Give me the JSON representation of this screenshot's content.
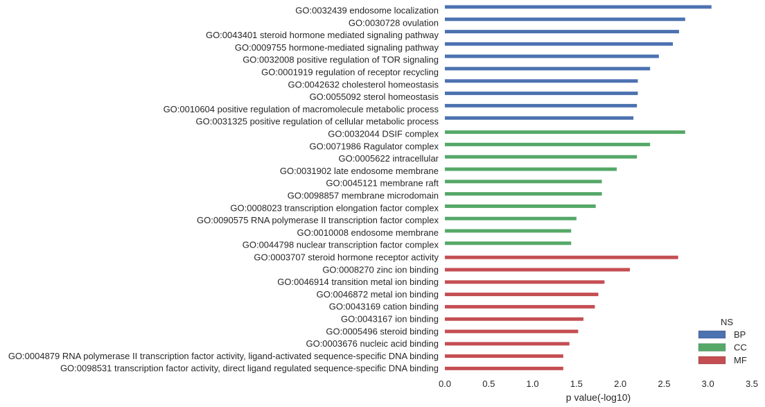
{
  "chart_data": {
    "type": "bar",
    "orientation": "horizontal",
    "xlabel": "p value(-log10)",
    "xlim": [
      0,
      3.5
    ],
    "xticks": [
      "0.0",
      "0.5",
      "1.0",
      "1.5",
      "2.0",
      "2.5",
      "3.0",
      "3.5"
    ],
    "grid": false,
    "legend": {
      "title": "NS",
      "placement": "bottom-right",
      "entries": [
        {
          "name": "BP",
          "color": "#4c72b0"
        },
        {
          "name": "CC",
          "color": "#55a868"
        },
        {
          "name": "MF",
          "color": "#c44e52"
        }
      ]
    },
    "categories": [
      {
        "label": "GO:0032439 endosome localization",
        "ns": "BP",
        "value": 3.04
      },
      {
        "label": "GO:0030728 ovulation",
        "ns": "BP",
        "value": 2.74
      },
      {
        "label": "GO:0043401 steroid hormone mediated signaling pathway",
        "ns": "BP",
        "value": 2.67
      },
      {
        "label": "GO:0009755 hormone-mediated signaling pathway",
        "ns": "BP",
        "value": 2.6
      },
      {
        "label": "GO:0032008 positive regulation of TOR signaling",
        "ns": "BP",
        "value": 2.44
      },
      {
        "label": "GO:0001919 regulation of receptor recycling",
        "ns": "BP",
        "value": 2.34
      },
      {
        "label": "GO:0042632 cholesterol homeostasis",
        "ns": "BP",
        "value": 2.2
      },
      {
        "label": "GO:0055092 sterol homeostasis",
        "ns": "BP",
        "value": 2.2
      },
      {
        "label": "GO:0010604 positive regulation of macromolecule metabolic process",
        "ns": "BP",
        "value": 2.19
      },
      {
        "label": "GO:0031325 positive regulation of cellular metabolic process",
        "ns": "BP",
        "value": 2.15
      },
      {
        "label": "GO:0032044 DSIF complex",
        "ns": "CC",
        "value": 2.74
      },
      {
        "label": "GO:0071986 Ragulator complex",
        "ns": "CC",
        "value": 2.34
      },
      {
        "label": "GO:0005622 intracellular",
        "ns": "CC",
        "value": 2.19
      },
      {
        "label": "GO:0031902 late endosome membrane",
        "ns": "CC",
        "value": 1.96
      },
      {
        "label": "GO:0045121 membrane raft",
        "ns": "CC",
        "value": 1.79
      },
      {
        "label": "GO:0098857 membrane microdomain",
        "ns": "CC",
        "value": 1.79
      },
      {
        "label": "GO:0008023 transcription elongation factor complex",
        "ns": "CC",
        "value": 1.72
      },
      {
        "label": "GO:0090575 RNA polymerase II transcription factor complex",
        "ns": "CC",
        "value": 1.5
      },
      {
        "label": "GO:0010008 endosome membrane",
        "ns": "CC",
        "value": 1.44
      },
      {
        "label": "GO:0044798 nuclear transcription factor complex",
        "ns": "CC",
        "value": 1.44
      },
      {
        "label": "GO:0003707 steroid hormone receptor activity",
        "ns": "MF",
        "value": 2.66
      },
      {
        "label": "GO:0008270 zinc ion binding",
        "ns": "MF",
        "value": 2.11
      },
      {
        "label": "GO:0046914 transition metal ion binding",
        "ns": "MF",
        "value": 1.82
      },
      {
        "label": "GO:0046872 metal ion binding",
        "ns": "MF",
        "value": 1.75
      },
      {
        "label": "GO:0043169 cation binding",
        "ns": "MF",
        "value": 1.71
      },
      {
        "label": "GO:0043167 ion binding",
        "ns": "MF",
        "value": 1.58
      },
      {
        "label": "GO:0005496 steroid binding",
        "ns": "MF",
        "value": 1.52
      },
      {
        "label": "GO:0003676 nucleic acid binding",
        "ns": "MF",
        "value": 1.42
      },
      {
        "label": "GO:0004879 RNA polymerase II transcription factor activity, ligand-activated sequence-specific DNA binding",
        "ns": "MF",
        "value": 1.35
      },
      {
        "label": "GO:0098531 transcription factor activity, direct ligand regulated sequence-specific DNA binding",
        "ns": "MF",
        "value": 1.35
      }
    ]
  }
}
